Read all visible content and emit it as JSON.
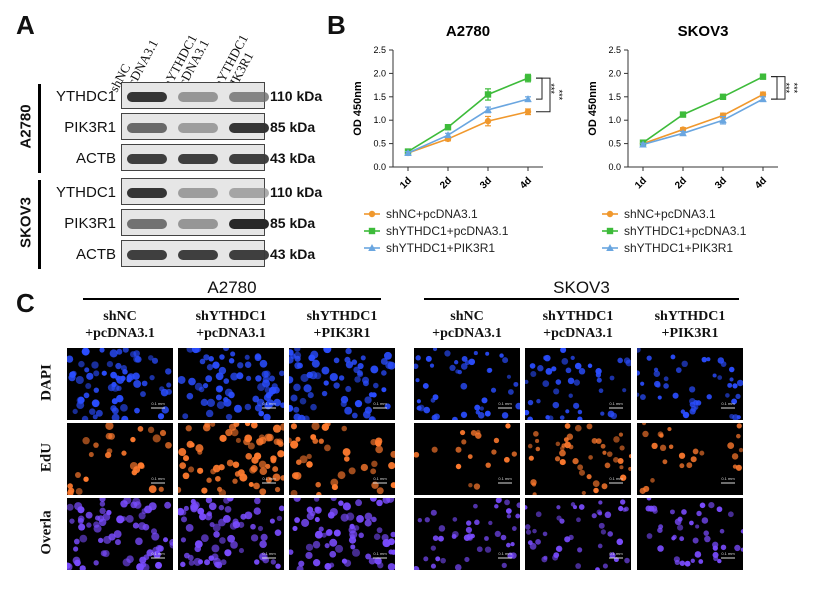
{
  "panels": {
    "a": "A",
    "b": "B",
    "c": "C"
  },
  "western": {
    "lanes": [
      "shNC\n+pcDNA3.1",
      "shYTHDC1\n+pcDNA3.1",
      "shYTHDC1\n+PIK3R1"
    ],
    "groups": [
      {
        "cell": "A2780",
        "blots": [
          {
            "protein": "YTHDC1",
            "kda": "110 kDa",
            "intensity": [
              0.95,
              0.45,
              0.55
            ]
          },
          {
            "protein": "PIK3R1",
            "kda": "85 kDa",
            "intensity": [
              0.7,
              0.4,
              0.95
            ]
          },
          {
            "protein": "ACTB",
            "kda": "43 kDa",
            "intensity": [
              0.9,
              0.9,
              0.9
            ]
          }
        ]
      },
      {
        "cell": "SKOV3",
        "blots": [
          {
            "protein": "YTHDC1",
            "kda": "110 kDa",
            "intensity": [
              0.95,
              0.4,
              0.35
            ]
          },
          {
            "protein": "PIK3R1",
            "kda": "85 kDa",
            "intensity": [
              0.65,
              0.45,
              1.0
            ]
          },
          {
            "protein": "ACTB",
            "kda": "43 kDa",
            "intensity": [
              0.9,
              0.9,
              0.9
            ]
          }
        ]
      }
    ]
  },
  "chart_data": [
    {
      "type": "line",
      "title": "A2780",
      "ylabel": "OD 450nm",
      "xlabel": "",
      "categories": [
        "1d",
        "2d",
        "3d",
        "4d"
      ],
      "ylim": [
        0,
        2.5
      ],
      "yticks": [
        "0.0",
        "0.5",
        "1.0",
        "1.5",
        "2.0",
        "2.5"
      ],
      "series": [
        {
          "name": "shNC+pcDNA3.1",
          "color": "#f0982d",
          "marker": "circle",
          "values": [
            0.3,
            0.6,
            0.98,
            1.18
          ],
          "err": [
            0.03,
            0.04,
            0.1,
            0.06
          ]
        },
        {
          "name": "shYTHDC1+pcDNA3.1",
          "color": "#3dbb3a",
          "marker": "square",
          "values": [
            0.33,
            0.85,
            1.55,
            1.9
          ],
          "err": [
            0.03,
            0.05,
            0.12,
            0.08
          ]
        },
        {
          "name": "shYTHDC1+PIK3R1",
          "color": "#6aa6e0",
          "marker": "triangle",
          "values": [
            0.3,
            0.68,
            1.22,
            1.45
          ],
          "err": [
            0.03,
            0.04,
            0.06,
            0.05
          ]
        }
      ],
      "significance": "***"
    },
    {
      "type": "line",
      "title": "SKOV3",
      "ylabel": "OD 450nm",
      "xlabel": "",
      "categories": [
        "1d",
        "2d",
        "3d",
        "4d"
      ],
      "ylim": [
        0,
        2.5
      ],
      "yticks": [
        "0.0",
        "0.5",
        "1.0",
        "1.5",
        "2.0",
        "2.5"
      ],
      "series": [
        {
          "name": "shNC+pcDNA3.1",
          "color": "#f0982d",
          "marker": "circle",
          "values": [
            0.5,
            0.8,
            1.1,
            1.55
          ],
          "err": [
            0.03,
            0.04,
            0.05,
            0.05
          ]
        },
        {
          "name": "shYTHDC1+pcDNA3.1",
          "color": "#3dbb3a",
          "marker": "square",
          "values": [
            0.52,
            1.12,
            1.5,
            1.93
          ],
          "err": [
            0.03,
            0.05,
            0.04,
            0.05
          ]
        },
        {
          "name": "shYTHDC1+PIK3R1",
          "color": "#6aa6e0",
          "marker": "triangle",
          "values": [
            0.48,
            0.72,
            1.0,
            1.45
          ],
          "err": [
            0.03,
            0.04,
            0.08,
            0.05
          ]
        }
      ],
      "significance": "***"
    }
  ],
  "legend": [
    "shNC+pcDNA3.1",
    "shYTHDC1+pcDNA3.1",
    "shYTHDC1+PIK3R1"
  ],
  "edu": {
    "groups": [
      {
        "title": "A2780",
        "conditions": [
          "shNC\n+pcDNA3.1",
          "shYTHDC1\n+pcDNA3.1",
          "shYTHDC1\n+PIK3R1"
        ]
      },
      {
        "title": "SKOV3",
        "conditions": [
          "shNC\n+pcDNA3.1",
          "shYTHDC1\n+pcDNA3.1",
          "shYTHDC1\n+PIK3R1"
        ]
      }
    ],
    "rows": [
      "DAPI",
      "EdU",
      "Overla"
    ],
    "scale_bar": "0.1 mm",
    "row_colors": {
      "DAPI": "#2a4dff",
      "EdU": "#ff7a2e",
      "Overla": "#7a4cff"
    }
  }
}
